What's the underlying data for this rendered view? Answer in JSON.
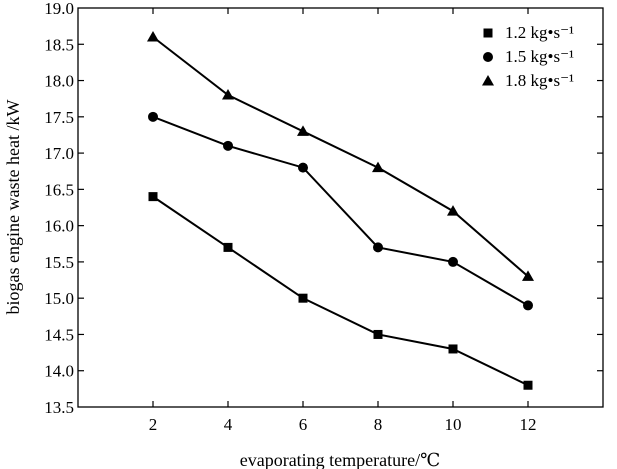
{
  "chart_data": {
    "type": "line",
    "title": "",
    "xlabel": "evaporating temperature/℃",
    "ylabel": "biogas  engine  waste heat /kW",
    "x": [
      2,
      4,
      6,
      8,
      10,
      12
    ],
    "xlim": [
      0,
      14
    ],
    "ylim": [
      13.5,
      19.0
    ],
    "xticks": [
      "2",
      "4",
      "6",
      "8",
      "10",
      "12"
    ],
    "yticks": [
      "13.5",
      "14.0",
      "14.5",
      "15.0",
      "15.5",
      "16.0",
      "16.5",
      "17.0",
      "17.5",
      "18.0",
      "18.5",
      "19.0"
    ],
    "grid": false,
    "legend_position": "top-right",
    "series": [
      {
        "name": "1.2  kg•s⁻¹",
        "marker": "square",
        "values": [
          16.4,
          15.7,
          15.0,
          14.5,
          14.3,
          13.8
        ]
      },
      {
        "name": "1.5  kg•s⁻¹",
        "marker": "circle",
        "values": [
          17.5,
          17.1,
          16.8,
          15.7,
          15.5,
          14.9
        ]
      },
      {
        "name": "1.8  kg•s⁻¹",
        "marker": "triangle",
        "values": [
          18.6,
          17.8,
          17.3,
          16.8,
          16.2,
          15.3
        ]
      }
    ]
  }
}
